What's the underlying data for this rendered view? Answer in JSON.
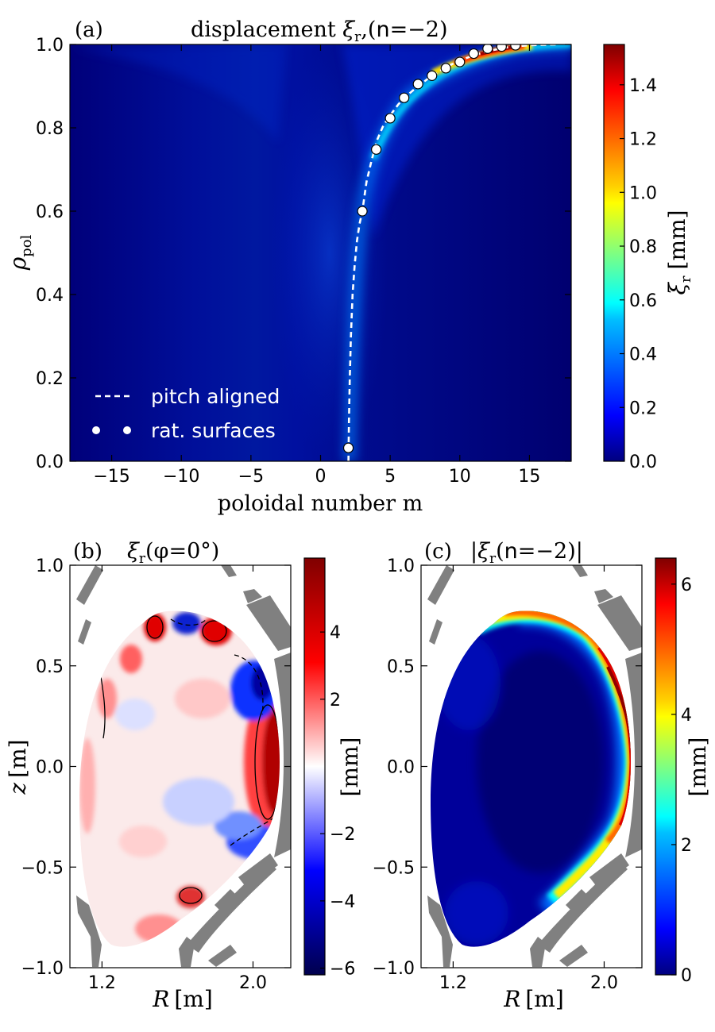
{
  "chart_data": [
    {
      "panel": "(a)",
      "type": "heatmap",
      "title": "displacement ξr,(n=−2)",
      "xlabel": "poloidal number m",
      "ylabel": "ρpol",
      "xlim": [
        -18,
        18
      ],
      "ylim": [
        0.0,
        1.0
      ],
      "xticks": [
        -15,
        -10,
        -5,
        0,
        5,
        10,
        15
      ],
      "yticks": [
        0.0,
        0.2,
        0.4,
        0.6,
        0.8,
        1.0
      ],
      "xtick_labels": [
        "−15",
        "−10",
        "−5",
        "0",
        "5",
        "10",
        "15"
      ],
      "ytick_labels": [
        "0.0",
        "0.2",
        "0.4",
        "0.6",
        "0.8",
        "1.0"
      ],
      "colorbar": {
        "label": "ξr [mm]",
        "range": [
          0.0,
          1.55
        ],
        "ticks": [
          0.0,
          0.2,
          0.4,
          0.6,
          0.8,
          1.0,
          1.2,
          1.4
        ],
        "tick_labels": [
          "0.0",
          "0.2",
          "0.4",
          "0.6",
          "0.8",
          "1.0",
          "1.2",
          "1.4"
        ],
        "colormap": "jet"
      },
      "legend": {
        "placement": "bottom-left",
        "entries": [
          {
            "label": "pitch aligned",
            "style": "dashed white line"
          },
          {
            "label": "rat. surfaces",
            "style": "white circle markers"
          }
        ]
      },
      "series": [
        {
          "name": "pitch aligned",
          "x": [
            2.0,
            2.04,
            2.1,
            2.18,
            2.3,
            2.45,
            2.62,
            2.8,
            3.0,
            3.3,
            3.65,
            4.05,
            4.5,
            5.0,
            5.6,
            6.3,
            7.0,
            7.8,
            8.6,
            9.4,
            10.2,
            11.0,
            11.8,
            12.6,
            13.4,
            14.2,
            15.0,
            16.0,
            17.0
          ],
          "y": [
            0.0,
            0.1,
            0.2,
            0.3,
            0.4,
            0.47,
            0.53,
            0.57,
            0.6,
            0.67,
            0.72,
            0.77,
            0.805,
            0.83,
            0.857,
            0.88,
            0.9,
            0.92,
            0.937,
            0.952,
            0.964,
            0.974,
            0.982,
            0.988,
            0.993,
            0.996,
            0.998,
            0.999,
            1.0
          ]
        },
        {
          "name": "rat. surfaces",
          "x": [
            2,
            3,
            4,
            5,
            6,
            7,
            8,
            9,
            10,
            11,
            12,
            13,
            14
          ],
          "y": [
            0.032,
            0.6,
            0.748,
            0.823,
            0.872,
            0.905,
            0.925,
            0.943,
            0.958,
            0.978,
            0.99,
            0.995,
            0.998
          ]
        }
      ],
      "ridge": {
        "description": "peak displacement follows pitch-aligned curve, max near m=11-13 at rho~0.98",
        "peak_value": 1.55
      }
    },
    {
      "panel": "(b)",
      "type": "heatmap",
      "title": "ξr(φ=0°)",
      "xlabel": "R [m]",
      "ylabel": "z [m]",
      "xlim": [
        1.03,
        2.2
      ],
      "ylim": [
        -1.0,
        1.0
      ],
      "xticks": [
        1.2,
        2.0
      ],
      "yticks": [
        -1.0,
        -0.5,
        0.0,
        0.5,
        1.0
      ],
      "xtick_labels": [
        "1.2",
        "2.0"
      ],
      "ytick_labels": [
        "−1.0",
        "−0.5",
        "0.0",
        "0.5",
        "1.0"
      ],
      "colorbar": {
        "label": "[mm]",
        "range": [
          -6.2,
          6.2
        ],
        "ticks": [
          -6,
          -4,
          -2,
          2,
          4
        ],
        "tick_labels": [
          "−6",
          "−4",
          "−2",
          "2",
          "4"
        ],
        "colormap": "seismic"
      }
    },
    {
      "panel": "(c)",
      "type": "heatmap",
      "title": "|ξr(n=−2)|",
      "xlabel": "R [m]",
      "ylabel": "",
      "xlim": [
        1.03,
        2.2
      ],
      "ylim": [
        -1.0,
        1.0
      ],
      "xticks": [
        1.2,
        2.0
      ],
      "yticks": [
        -1.0,
        -0.5,
        0.0,
        0.5,
        1.0
      ],
      "xtick_labels": [
        "1.2",
        "2.0"
      ],
      "ytick_labels": [
        "−1.0",
        "−0.5",
        "0.0",
        "0.5",
        "1.0"
      ],
      "colorbar": {
        "label": "[mm]",
        "range": [
          0,
          6.4
        ],
        "ticks": [
          0,
          2,
          4,
          6
        ],
        "tick_labels": [
          "0",
          "2",
          "4",
          "6"
        ],
        "colormap": "jet"
      }
    }
  ],
  "labels": {
    "a_tag": "(a)",
    "a_title_main": "displacement ",
    "a_title_xi": "ξ",
    "a_title_sub": "r",
    "a_title_rest": ",(",
    "a_title_n": "n",
    "a_title_eq": "=−2)",
    "a_ylabel_rho": "ρ",
    "a_ylabel_sub": "pol",
    "a_xlabel": "poloidal number m",
    "a_cbar_xi": "ξ",
    "a_cbar_sub": "r",
    "a_cbar_unit": "[mm]",
    "leg_pitch": "pitch aligned",
    "leg_rat": "rat. surfaces",
    "b_tag": "(b)",
    "b_title_xi": "ξ",
    "b_title_sub": "r",
    "b_title_rest": "(φ=0°)",
    "c_tag": "(c)",
    "c_title_open": "|ξ",
    "c_title_sub": "r",
    "c_title_paren": "(",
    "c_title_n": "n",
    "c_title_rest": "=−2)|",
    "R_label_R": "R",
    "R_label_unit": "[m]",
    "z_label_z": "z",
    "z_label_unit": "[m]",
    "mm_label": "[mm]"
  },
  "colors": {
    "axis": "#000000",
    "wall": "#808080",
    "jet_low": "#00007f",
    "seismic_low": "#00004d",
    "seismic_high": "#800000"
  }
}
